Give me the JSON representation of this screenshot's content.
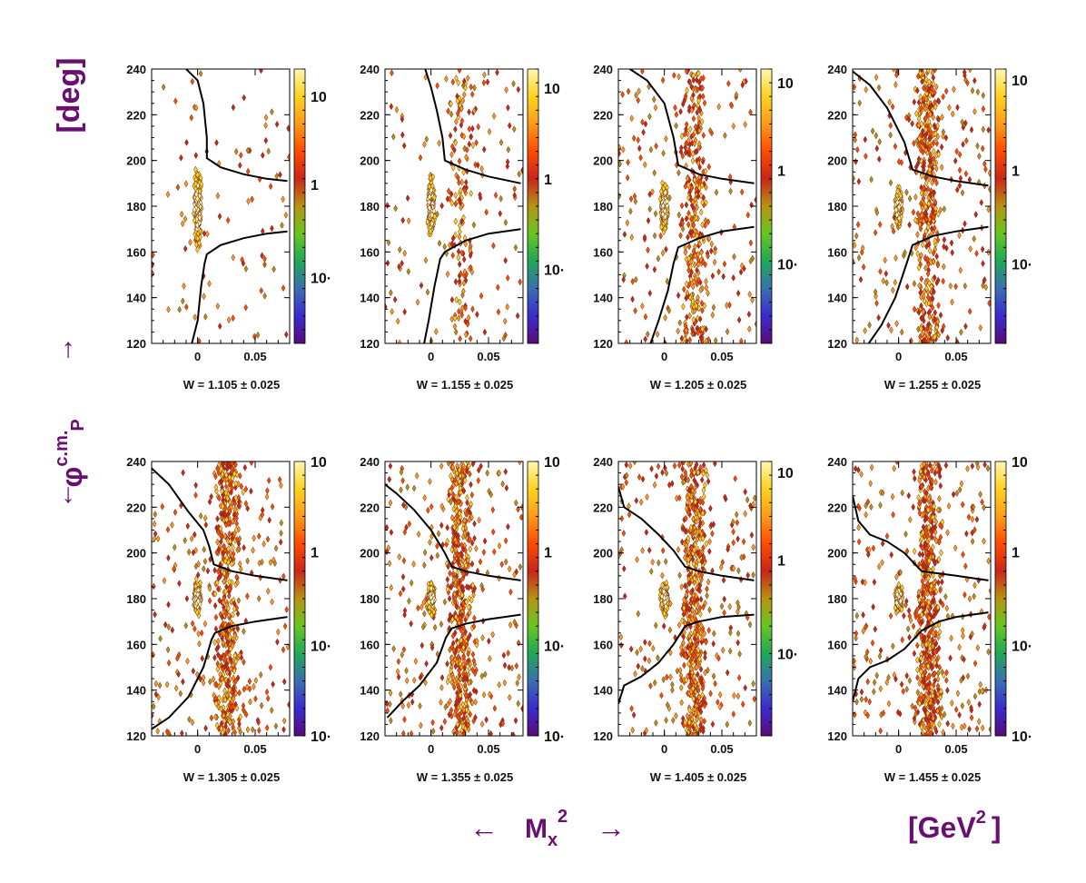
{
  "chart_data": {
    "type": "heatmap",
    "figure": {
      "y_axis_title_main": "φ",
      "y_axis_title_sup": "c.m.",
      "y_axis_title_sub": "P",
      "y_axis_unit": "[deg]",
      "x_axis_title_main": "M",
      "x_axis_title_sub": "x",
      "x_axis_title_sup": "2",
      "x_axis_unit_main": "[GeV",
      "x_axis_unit_sup": "2",
      "x_axis_unit_close": "]",
      "left_arrow": "←",
      "right_arrow": "→",
      "up_arrow": "→",
      "down_arrow": "←"
    },
    "xlim": [
      -0.04,
      0.08
    ],
    "ylim": [
      120,
      240
    ],
    "x_ticks": [
      0,
      0.05
    ],
    "x_tick_labels": [
      "0",
      "0.05"
    ],
    "y_ticks": [
      120,
      140,
      160,
      180,
      200,
      220,
      240
    ],
    "y_tick_labels": [
      "120",
      "140",
      "160",
      "180",
      "200",
      "220",
      "240"
    ],
    "colorscale": [
      "#5a0a7a",
      "#3a2bd0",
      "#3a6fb0",
      "#1fa85a",
      "#69c51f",
      "#b79314",
      "#c9261a",
      "#ff4a00",
      "#ff9a1a",
      "#ffd21f",
      "#fff8b0"
    ],
    "panels": [
      {
        "w": "W = 1.105 ± 0.025",
        "cb_labels": [
          "10",
          "1",
          "10·"
        ],
        "cb_positions": [
          0.1,
          0.42,
          0.76
        ],
        "band": 0.0,
        "upper_cut": [
          [
            -0.01,
            240
          ],
          [
            0.0,
            235
          ],
          [
            0.005,
            225
          ],
          [
            0.008,
            210
          ],
          [
            0.008,
            201
          ],
          [
            0.02,
            197
          ],
          [
            0.04,
            194
          ],
          [
            0.06,
            192
          ],
          [
            0.078,
            191
          ]
        ],
        "lower_cut": [
          [
            -0.005,
            120
          ],
          [
            0.0,
            130
          ],
          [
            0.003,
            145
          ],
          [
            0.006,
            155
          ],
          [
            0.008,
            159
          ],
          [
            0.02,
            163
          ],
          [
            0.04,
            166
          ],
          [
            0.06,
            168
          ],
          [
            0.078,
            169
          ]
        ]
      },
      {
        "w": "W = 1.155 ± 0.025",
        "cb_labels": [
          "10",
          "1",
          "10·"
        ],
        "cb_positions": [
          0.07,
          0.4,
          0.73
        ],
        "band": 0.25,
        "upper_cut": [
          [
            -0.005,
            240
          ],
          [
            0.0,
            232
          ],
          [
            0.005,
            222
          ],
          [
            0.01,
            210
          ],
          [
            0.012,
            200
          ],
          [
            0.03,
            196
          ],
          [
            0.05,
            193
          ],
          [
            0.078,
            190
          ]
        ],
        "lower_cut": [
          [
            -0.006,
            120
          ],
          [
            -0.002,
            130
          ],
          [
            0.003,
            145
          ],
          [
            0.008,
            157
          ],
          [
            0.012,
            160
          ],
          [
            0.03,
            165
          ],
          [
            0.05,
            168
          ],
          [
            0.078,
            170
          ]
        ]
      },
      {
        "w": "W = 1.205 ± 0.025",
        "cb_labels": [
          "10",
          "1",
          "10·"
        ],
        "cb_positions": [
          0.05,
          0.37,
          0.71
        ],
        "band": 0.55,
        "upper_cut": [
          [
            -0.03,
            240
          ],
          [
            -0.015,
            235
          ],
          [
            0.0,
            225
          ],
          [
            0.008,
            210
          ],
          [
            0.012,
            198
          ],
          [
            0.03,
            194
          ],
          [
            0.05,
            192
          ],
          [
            0.078,
            190
          ]
        ],
        "lower_cut": [
          [
            -0.012,
            120
          ],
          [
            -0.005,
            130
          ],
          [
            0.003,
            143
          ],
          [
            0.008,
            155
          ],
          [
            0.012,
            162
          ],
          [
            0.03,
            166
          ],
          [
            0.05,
            169
          ],
          [
            0.078,
            171
          ]
        ]
      },
      {
        "w": "W = 1.255 ± 0.025",
        "cb_labels": [
          "10",
          "1",
          "10·"
        ],
        "cb_positions": [
          0.04,
          0.37,
          0.71
        ],
        "band": 0.75,
        "upper_cut": [
          [
            -0.04,
            239
          ],
          [
            -0.025,
            233
          ],
          [
            -0.01,
            223
          ],
          [
            0.005,
            208
          ],
          [
            0.012,
            196
          ],
          [
            0.03,
            193
          ],
          [
            0.05,
            191
          ],
          [
            0.078,
            189
          ]
        ],
        "lower_cut": [
          [
            -0.026,
            120
          ],
          [
            -0.015,
            128
          ],
          [
            -0.003,
            140
          ],
          [
            0.007,
            155
          ],
          [
            0.012,
            163
          ],
          [
            0.03,
            167
          ],
          [
            0.05,
            169
          ],
          [
            0.078,
            171
          ]
        ]
      },
      {
        "w": "W = 1.305 ± 0.025",
        "cb_labels": [
          "10",
          "1",
          "10·",
          "10·"
        ],
        "cb_positions": [
          0.0,
          0.33,
          0.67,
          1.0
        ],
        "band": 0.85,
        "upper_cut": [
          [
            -0.04,
            237
          ],
          [
            -0.025,
            230
          ],
          [
            -0.008,
            218
          ],
          [
            0.005,
            210
          ],
          [
            0.01,
            203
          ],
          [
            0.014,
            195
          ],
          [
            0.03,
            192
          ],
          [
            0.05,
            190
          ],
          [
            0.078,
            188
          ]
        ],
        "lower_cut": [
          [
            -0.04,
            123
          ],
          [
            -0.025,
            128
          ],
          [
            -0.008,
            137
          ],
          [
            0.005,
            150
          ],
          [
            0.012,
            162
          ],
          [
            0.015,
            165
          ],
          [
            0.03,
            168
          ],
          [
            0.05,
            170
          ],
          [
            0.078,
            172
          ]
        ]
      },
      {
        "w": "W = 1.355 ± 0.025",
        "cb_labels": [
          "10",
          "1",
          "10·",
          "10·"
        ],
        "cb_positions": [
          0.0,
          0.33,
          0.67,
          1.0
        ],
        "band": 0.9,
        "upper_cut": [
          [
            -0.04,
            230
          ],
          [
            -0.03,
            226
          ],
          [
            -0.015,
            219
          ],
          [
            0.0,
            210
          ],
          [
            0.012,
            200
          ],
          [
            0.018,
            194
          ],
          [
            0.03,
            192
          ],
          [
            0.05,
            190
          ],
          [
            0.078,
            188
          ]
        ],
        "lower_cut": [
          [
            -0.038,
            128
          ],
          [
            -0.025,
            135
          ],
          [
            -0.01,
            142
          ],
          [
            0.005,
            152
          ],
          [
            0.013,
            163
          ],
          [
            0.018,
            167
          ],
          [
            0.03,
            169
          ],
          [
            0.05,
            171
          ],
          [
            0.078,
            173
          ]
        ]
      },
      {
        "w": "W = 1.405 ± 0.025",
        "cb_labels": [
          "10",
          "1",
          "10·"
        ],
        "cb_positions": [
          0.04,
          0.36,
          0.7
        ],
        "band": 0.9,
        "upper_cut": [
          [
            -0.04,
            229
          ],
          [
            -0.035,
            220
          ],
          [
            -0.02,
            215
          ],
          [
            -0.005,
            208
          ],
          [
            0.008,
            201
          ],
          [
            0.018,
            194
          ],
          [
            0.03,
            192
          ],
          [
            0.05,
            190
          ],
          [
            0.078,
            188
          ]
        ],
        "lower_cut": [
          [
            -0.04,
            134
          ],
          [
            -0.035,
            142
          ],
          [
            -0.02,
            146
          ],
          [
            -0.005,
            152
          ],
          [
            0.008,
            160
          ],
          [
            0.018,
            168
          ],
          [
            0.03,
            170
          ],
          [
            0.05,
            172
          ],
          [
            0.078,
            173
          ]
        ]
      },
      {
        "w": "W = 1.455 ± 0.025",
        "cb_labels": [
          "10",
          "1",
          "10·",
          "10·"
        ],
        "cb_positions": [
          0.0,
          0.33,
          0.67,
          1.0
        ],
        "band": 0.95,
        "upper_cut": [
          [
            -0.04,
            225
          ],
          [
            -0.035,
            214
          ],
          [
            -0.025,
            208
          ],
          [
            -0.01,
            205
          ],
          [
            0.005,
            200
          ],
          [
            0.02,
            192
          ],
          [
            0.035,
            191
          ],
          [
            0.05,
            190
          ],
          [
            0.078,
            188
          ]
        ],
        "lower_cut": [
          [
            -0.04,
            135
          ],
          [
            -0.035,
            145
          ],
          [
            -0.025,
            150
          ],
          [
            -0.01,
            153
          ],
          [
            0.005,
            158
          ],
          [
            0.02,
            166
          ],
          [
            0.035,
            170
          ],
          [
            0.05,
            172
          ],
          [
            0.078,
            174
          ]
        ]
      }
    ]
  }
}
